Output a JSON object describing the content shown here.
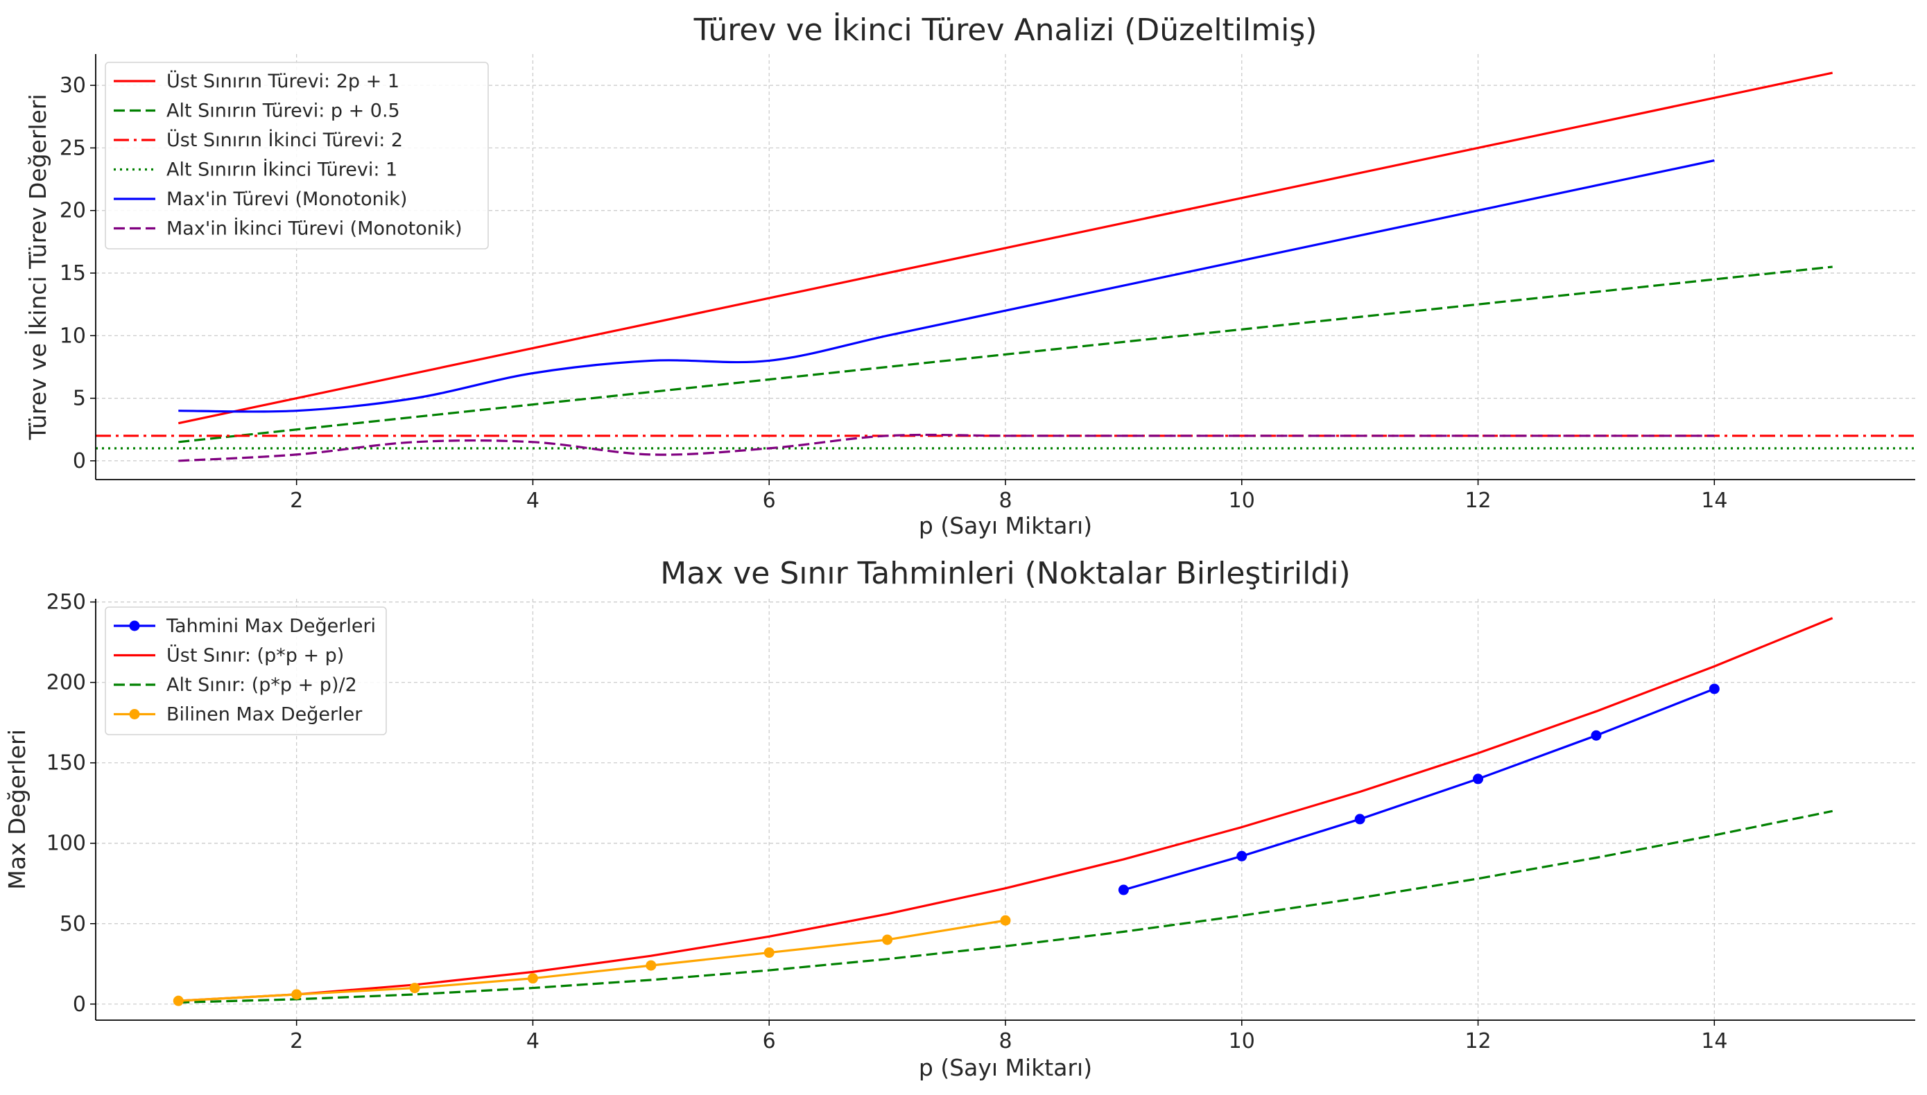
{
  "chart_data": [
    {
      "type": "line",
      "title": "Türev ve İkinci Türev Analizi (Düzeltilmiş)",
      "xlabel": "p (Sayı Miktarı)",
      "ylabel": "Türev ve İkinci Türev Değerleri",
      "xlim": [
        0.3,
        15.7
      ],
      "ylim": [
        -1.5,
        32.5
      ],
      "xticks": [
        2,
        4,
        6,
        8,
        10,
        12,
        14
      ],
      "yticks": [
        0,
        5,
        10,
        15,
        20,
        25,
        30
      ],
      "xtick_labels": [
        "2",
        "4",
        "6",
        "8",
        "10",
        "12",
        "14"
      ],
      "ytick_labels": [
        "0",
        "5",
        "10",
        "15",
        "20",
        "25",
        "30"
      ],
      "grid": true,
      "legend_position": "top-left",
      "series": [
        {
          "name": "Üst Sınırın Türevi: 2p + 1",
          "color": "#ff0000",
          "style": "solid",
          "smooth": false,
          "x": [
            1,
            15
          ],
          "y": [
            3,
            31
          ]
        },
        {
          "name": "Alt Sınırın Türevi: p + 0.5",
          "color": "#008000",
          "style": "dashed",
          "smooth": false,
          "x": [
            1,
            15
          ],
          "y": [
            1.5,
            15.5
          ]
        },
        {
          "name": "Üst Sınırın İkinci Türevi: 2",
          "color": "#ff0000",
          "style": "dashdot",
          "smooth": false,
          "hline": true,
          "x": [
            0.3,
            15.7
          ],
          "y": [
            2,
            2
          ]
        },
        {
          "name": "Alt Sınırın İkinci Türevi: 1",
          "color": "#008000",
          "style": "dotted",
          "smooth": false,
          "hline": true,
          "x": [
            0.3,
            15.7
          ],
          "y": [
            1,
            1
          ]
        },
        {
          "name": "Max'in Türevi (Monotonik)",
          "color": "#0000ff",
          "style": "solid",
          "smooth": true,
          "x": [
            1,
            2,
            3,
            4,
            5,
            6,
            7,
            8,
            9,
            10,
            11,
            12,
            13,
            14
          ],
          "y": [
            4,
            4,
            5,
            7,
            8,
            8,
            10,
            12,
            14,
            16,
            18,
            20,
            22,
            24
          ]
        },
        {
          "name": "Max'in İkinci Türevi (Monotonik)",
          "color": "#800080",
          "style": "dashed",
          "smooth": true,
          "x": [
            1,
            2,
            3,
            4,
            5,
            6,
            7,
            8,
            9,
            10,
            11,
            12,
            13,
            14
          ],
          "y": [
            0,
            0.5,
            1.5,
            1.5,
            0.5,
            1,
            2,
            2,
            2,
            2,
            2,
            2,
            2,
            2
          ]
        }
      ]
    },
    {
      "type": "line",
      "title": "Max ve Sınır Tahminleri (Noktalar Birleştirildi)",
      "xlabel": "p (Sayı Miktarı)",
      "ylabel": "Max Değerleri",
      "xlim": [
        0.3,
        15.7
      ],
      "ylim": [
        -10,
        252
      ],
      "xticks": [
        2,
        4,
        6,
        8,
        10,
        12,
        14
      ],
      "yticks": [
        0,
        50,
        100,
        150,
        200,
        250
      ],
      "xtick_labels": [
        "2",
        "4",
        "6",
        "8",
        "10",
        "12",
        "14"
      ],
      "ytick_labels": [
        "0",
        "50",
        "100",
        "150",
        "200",
        "250"
      ],
      "grid": true,
      "legend_position": "top-left",
      "series": [
        {
          "name": "Tahmini Max Değerleri",
          "color": "#0000ff",
          "style": "solid",
          "marker": true,
          "smooth": false,
          "x": [
            9,
            10,
            11,
            12,
            13,
            14
          ],
          "y": [
            71,
            92,
            115,
            140,
            167,
            196
          ]
        },
        {
          "name": "Üst Sınır: (p*p + p)",
          "color": "#ff0000",
          "style": "solid",
          "smooth": false,
          "x": [
            1,
            2,
            3,
            4,
            5,
            6,
            7,
            8,
            9,
            10,
            11,
            12,
            13,
            14,
            15
          ],
          "y": [
            2,
            6,
            12,
            20,
            30,
            42,
            56,
            72,
            90,
            110,
            132,
            156,
            182,
            210,
            240
          ]
        },
        {
          "name": "Alt Sınır: (p*p + p)/2",
          "color": "#008000",
          "style": "dashed",
          "smooth": false,
          "x": [
            1,
            2,
            3,
            4,
            5,
            6,
            7,
            8,
            9,
            10,
            11,
            12,
            13,
            14,
            15
          ],
          "y": [
            1,
            3,
            6,
            10,
            15,
            21,
            28,
            36,
            45,
            55,
            66,
            78,
            91,
            105,
            120
          ]
        },
        {
          "name": "Bilinen Max Değerler",
          "color": "#ffa500",
          "style": "solid",
          "marker": true,
          "smooth": false,
          "x": [
            1,
            2,
            3,
            4,
            5,
            6,
            7,
            8
          ],
          "y": [
            2,
            6,
            10,
            16,
            24,
            32,
            40,
            52
          ]
        }
      ]
    }
  ]
}
